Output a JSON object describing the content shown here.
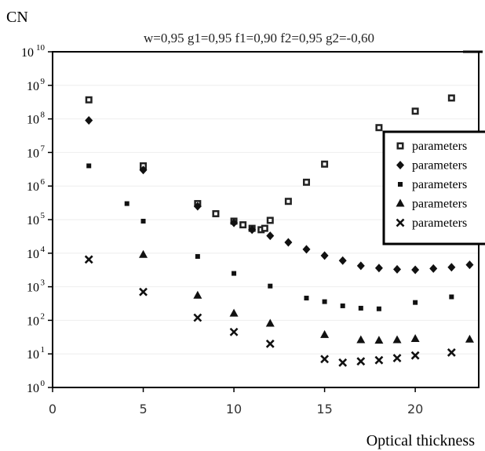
{
  "chart_data": {
    "type": "scatter",
    "ylabel": "CN",
    "title": "w=0,95 g1=0,95 f1=0,90 f2=0,95 g2=-0,60",
    "xlabel": "Optical thickness",
    "xlim": [
      0,
      23.5
    ],
    "ylim": [
      1,
      10000000000
    ],
    "y_scale": "log",
    "x_ticks": [
      0,
      5,
      10,
      15,
      20
    ],
    "y_ticks": [
      {
        "exp": "0",
        "value": 1
      },
      {
        "exp": "1",
        "value": 10
      },
      {
        "exp": "2",
        "value": 100
      },
      {
        "exp": "3",
        "value": 1000
      },
      {
        "exp": "4",
        "value": 10000
      },
      {
        "exp": "5",
        "value": 100000
      },
      {
        "exp": "6",
        "value": 1000000
      },
      {
        "exp": "7",
        "value": 10000000
      },
      {
        "exp": "8",
        "value": 100000000
      },
      {
        "exp": "9",
        "value": 1000000000
      },
      {
        "exp": "10",
        "value": 10000000000
      }
    ],
    "legend_position": "right",
    "series": [
      {
        "name": "parameters",
        "marker": "hollow-square",
        "x": [
          2,
          5,
          8,
          9,
          10,
          10.5,
          11,
          11.5,
          11.7,
          12,
          13,
          14,
          15,
          18,
          20,
          22
        ],
        "y": [
          370000000,
          4000000,
          300000,
          150000,
          90000,
          70000,
          55000,
          50000,
          55000,
          95000,
          350000,
          1300000,
          4500000,
          55000000,
          170000000,
          420000000
        ]
      },
      {
        "name": "parameters",
        "marker": "diamond",
        "x": [
          2,
          5,
          8,
          10,
          11,
          12,
          13,
          14,
          15,
          16,
          17,
          18,
          19,
          20,
          21,
          22,
          23
        ],
        "y": [
          90000000,
          3000000,
          250000,
          80000,
          50000,
          33000,
          21000,
          13000,
          8500,
          6000,
          4200,
          3600,
          3300,
          3200,
          3500,
          3800,
          4500
        ]
      },
      {
        "name": "parameters",
        "marker": "small-square",
        "x": [
          2,
          4.1,
          5,
          8,
          10,
          12,
          14,
          15,
          16,
          17,
          18,
          20,
          22
        ],
        "y": [
          4000000,
          300000,
          90000,
          8000,
          2500,
          1050,
          460,
          360,
          270,
          230,
          220,
          340,
          500
        ]
      },
      {
        "name": "parameters",
        "marker": "triangle",
        "x": [
          5,
          8,
          10,
          12,
          15,
          17,
          18,
          19,
          20,
          23
        ],
        "y": [
          9000,
          550,
          160,
          80,
          37,
          26,
          25,
          26,
          28,
          27
        ]
      },
      {
        "name": "parameters",
        "marker": "cross",
        "x": [
          2,
          5,
          8,
          10,
          12,
          15,
          16,
          17,
          18,
          19,
          20,
          22
        ],
        "y": [
          6500,
          700,
          120,
          45,
          20,
          7,
          5.5,
          6,
          6.5,
          7.5,
          9,
          11
        ]
      }
    ]
  }
}
